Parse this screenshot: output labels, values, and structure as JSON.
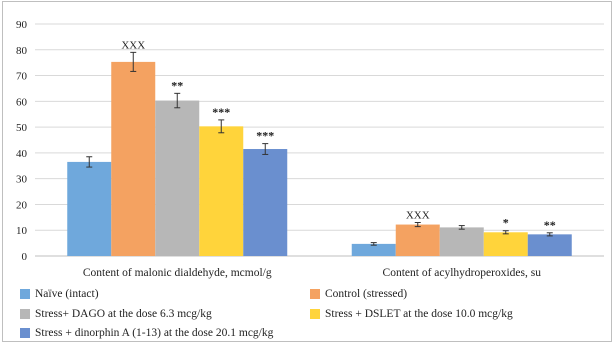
{
  "chart_data": {
    "type": "bar",
    "categories": [
      "Content of malonic dialdehyde, mcmol/g",
      "Content of acylhydroperoxides, su"
    ],
    "ylim": [
      0,
      90
    ],
    "yticks": [
      0,
      10,
      20,
      30,
      40,
      50,
      60,
      70,
      80,
      90
    ],
    "grid": true,
    "legend_position": "bottom",
    "series": [
      {
        "name": "Naïve (intact)",
        "color": "#6fa8dc",
        "values": [
          36.5,
          4.7
        ],
        "errors": [
          2.0,
          0.5
        ],
        "annotations": [
          "",
          ""
        ]
      },
      {
        "name": "Control (stressed)",
        "color": "#f4a261",
        "values": [
          75.3,
          12.2
        ],
        "errors": [
          3.7,
          0.8
        ],
        "annotations": [
          "XXX",
          "XXX"
        ]
      },
      {
        "name": "Stress+ DAGO at the dose 6.3 mcg/kg",
        "color": "#b7b7b7",
        "values": [
          60.3,
          11.1
        ],
        "errors": [
          2.8,
          0.7
        ],
        "annotations": [
          "**",
          ""
        ]
      },
      {
        "name": "Stress + DSLET at the dose 10.0 mcg/kg",
        "color": "#ffd43b",
        "values": [
          50.3,
          9.2
        ],
        "errors": [
          2.5,
          0.6
        ],
        "annotations": [
          "***",
          "*"
        ]
      },
      {
        "name": "Stress + dinorphin A (1-13) at the dose 20.1 mcg/kg",
        "color": "#6a8fcf",
        "values": [
          41.5,
          8.4
        ],
        "errors": [
          2.1,
          0.6
        ],
        "annotations": [
          "***",
          "**"
        ]
      }
    ]
  }
}
